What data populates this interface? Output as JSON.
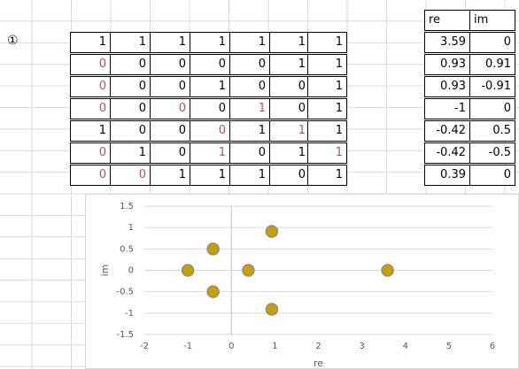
{
  "marker": "①",
  "matrix": [
    [
      1,
      1,
      1,
      1,
      1,
      1,
      1
    ],
    [
      0,
      0,
      0,
      0,
      0,
      1,
      1
    ],
    [
      0,
      0,
      0,
      1,
      0,
      0,
      1
    ],
    [
      0,
      0,
      0,
      0,
      1,
      0,
      1
    ],
    [
      1,
      0,
      0,
      0,
      1,
      1,
      1
    ],
    [
      0,
      1,
      0,
      1,
      0,
      1,
      1
    ],
    [
      0,
      0,
      1,
      1,
      1,
      0,
      1
    ]
  ],
  "matrix_red": [
    [
      false,
      false,
      false,
      false,
      false,
      false,
      false
    ],
    [
      true,
      false,
      false,
      false,
      false,
      false,
      false
    ],
    [
      true,
      false,
      false,
      false,
      false,
      false,
      false
    ],
    [
      true,
      false,
      true,
      false,
      true,
      false,
      false
    ],
    [
      false,
      false,
      false,
      true,
      false,
      true,
      false
    ],
    [
      true,
      false,
      false,
      true,
      false,
      false,
      true
    ],
    [
      true,
      true,
      false,
      false,
      false,
      false,
      false
    ]
  ],
  "eigen_table": {
    "headers": [
      "re",
      "im"
    ],
    "rows": [
      [
        "3.59",
        "0"
      ],
      [
        "0.93",
        "0.91"
      ],
      [
        "0.93",
        "-0.91"
      ],
      [
        "-1",
        "0"
      ],
      [
        "-0.42",
        "0.5"
      ],
      [
        "-0.42",
        "-0.5"
      ],
      [
        "0.39",
        "0"
      ]
    ]
  },
  "chart_data": {
    "type": "scatter",
    "title": "",
    "xlabel": "re",
    "ylabel": "im",
    "xlim": [
      -2,
      6
    ],
    "ylim": [
      -1.5,
      1.5
    ],
    "xticks": [
      "-2",
      "-1",
      "0",
      "1",
      "2",
      "3",
      "4",
      "5",
      "6"
    ],
    "yticks": [
      "1.5",
      "1",
      "0.5",
      "0",
      "-0.5",
      "-1",
      "-1.5"
    ],
    "grid": "horizontal",
    "marker_color": "#c9a000",
    "marker_edge": "#8c8c8c",
    "points": [
      {
        "x": 3.59,
        "y": 0
      },
      {
        "x": 0.93,
        "y": 0.91
      },
      {
        "x": 0.93,
        "y": -0.91
      },
      {
        "x": -1,
        "y": 0
      },
      {
        "x": -0.42,
        "y": 0.5
      },
      {
        "x": -0.42,
        "y": -0.5
      },
      {
        "x": 0.39,
        "y": 0
      }
    ]
  }
}
